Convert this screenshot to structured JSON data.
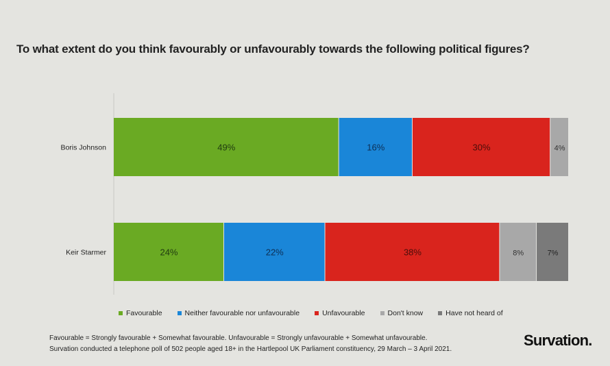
{
  "title": "To what extent do you think favourably or unfavourably towards the following political figures?",
  "chart_data": {
    "type": "bar",
    "orientation": "horizontal",
    "stacked": true,
    "categories": [
      "Boris Johnson",
      "Keir Starmer"
    ],
    "series": [
      {
        "name": "Favourable",
        "color": "#6aaa23",
        "values": [
          49,
          24
        ],
        "labels": [
          "49%",
          "24%"
        ]
      },
      {
        "name": "Neither favourable nor unfavourable",
        "color": "#1a86d8",
        "values": [
          16,
          22
        ],
        "labels": [
          "16%",
          "22%"
        ]
      },
      {
        "name": "Unfavourable",
        "color": "#d9241d",
        "values": [
          30,
          38
        ],
        "labels": [
          "30%",
          "38%"
        ]
      },
      {
        "name": "Don't know",
        "color": "#a8a8a8",
        "values": [
          4,
          8
        ],
        "labels": [
          "4%",
          "8%"
        ]
      },
      {
        "name": "Have not heard of",
        "color": "#7a7a7a",
        "values": [
          0,
          7
        ],
        "labels": [
          "",
          "7%"
        ]
      }
    ],
    "xlim": [
      0,
      99
    ],
    "grid": false,
    "legend_position": "bottom"
  },
  "footnote": {
    "line1": "Favourable = Strongly favourable + Somewhat favourable. Unfavourable = Strongly unfavourable + Somewhat unfavourable.",
    "line2": "Survation conducted a telephone poll of 502 people aged 18+ in the Hartlepool UK Parliament constituency, 29 March – 3 April 2021."
  },
  "brand": "Survation."
}
